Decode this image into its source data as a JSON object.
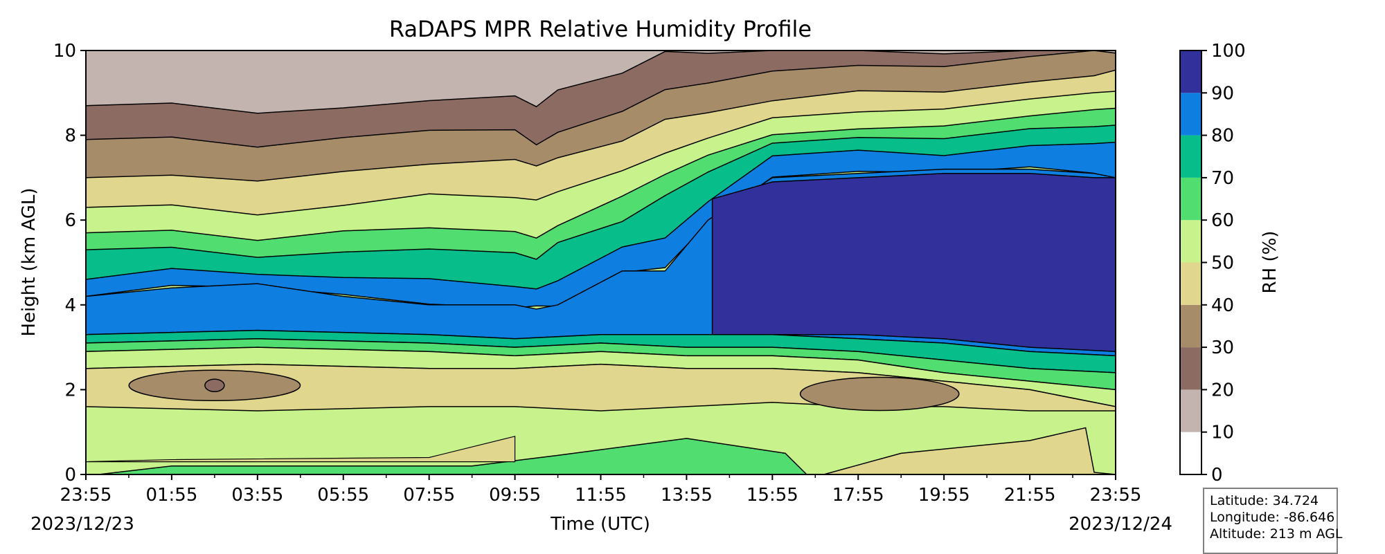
{
  "chart_data": {
    "type": "heatmap",
    "title": "RaDAPS MPR Relative Humidity Profile",
    "xlabel": "Time (UTC)",
    "ylabel": "Height (km AGL)",
    "x_tick_labels": [
      "23:55",
      "01:55",
      "03:55",
      "05:55",
      "07:55",
      "09:55",
      "11:55",
      "13:55",
      "15:55",
      "17:55",
      "19:55",
      "21:55",
      "23:55"
    ],
    "start_date": "2023/12/23",
    "end_date": "2023/12/24",
    "xlim": [
      0,
      24
    ],
    "ylim": [
      0,
      10
    ],
    "y_ticks": [
      0,
      2,
      4,
      6,
      8,
      10
    ],
    "colorbar": {
      "label": "RH (%)",
      "levels": [
        0,
        10,
        20,
        30,
        40,
        50,
        60,
        70,
        80,
        90,
        100
      ],
      "colors": [
        "#ffffff",
        "#c4b4b0",
        "#8c6b62",
        "#a68c68",
        "#e0d68e",
        "#c8f28c",
        "#52dd70",
        "#07be8a",
        "#0e7fe1",
        "#32319b"
      ]
    },
    "grid": false,
    "contour_fields": [
      {
        "name": "rh",
        "x_hours": [
          0,
          2,
          4,
          6,
          8,
          10,
          10.5,
          11,
          12.5,
          13.5,
          14.5,
          16,
          18,
          20,
          22,
          23.5,
          24
        ],
        "note_threshold_heights_km": {
          "10": [
            0,
            0,
            0,
            0,
            0,
            0,
            0,
            0,
            0,
            0,
            0,
            0,
            0,
            0,
            0,
            0,
            0
          ],
          "20": [
            8.7,
            8.7,
            8.6,
            8.6,
            8.8,
            9.0,
            8.6,
            9.1,
            9.5,
            9.9,
            10,
            10,
            10,
            10,
            10,
            10,
            10
          ],
          "30": [
            7.9,
            7.9,
            7.8,
            7.9,
            8.1,
            8.2,
            7.7,
            8.1,
            8.6,
            9.0,
            9.3,
            9.5,
            9.6,
            9.7,
            9.8,
            10,
            10
          ],
          "40": [
            7.0,
            7.0,
            7.0,
            7.1,
            7.3,
            7.5,
            7.2,
            7.5,
            7.9,
            8.3,
            8.6,
            8.8,
            9.0,
            9.1,
            9.2,
            9.4,
            9.6
          ],
          "50": [
            6.3,
            6.3,
            6.2,
            6.3,
            6.6,
            6.6,
            6.4,
            6.7,
            7.2,
            7.5,
            8.0,
            8.4,
            8.5,
            8.7,
            8.8,
            9.0,
            9.1
          ],
          "60": [
            5.7,
            5.7,
            5.6,
            5.7,
            5.8,
            5.8,
            5.5,
            5.9,
            6.6,
            7.0,
            7.6,
            8.0,
            8.1,
            8.3,
            8.4,
            8.6,
            8.7
          ],
          "70": [
            5.3,
            5.3,
            5.2,
            5.2,
            5.3,
            5.3,
            5.0,
            5.5,
            6.0,
            6.5,
            7.2,
            7.8,
            7.9,
            8.0,
            8.1,
            8.2,
            8.3
          ],
          "80": [
            4.6,
            4.8,
            4.8,
            4.6,
            4.6,
            4.5,
            4.3,
            4.6,
            5.4,
            5.5,
            6.5,
            7.5,
            7.6,
            7.6,
            7.7,
            7.8,
            7.9
          ],
          "90": [
            4.2,
            4.4,
            4.5,
            4.2,
            4.0,
            4.0,
            3.9,
            4.0,
            4.8,
            4.8,
            6.0,
            7.0,
            7.1,
            7.2,
            7.2,
            7.1,
            7.0
          ]
        }
      }
    ]
  },
  "info_box": {
    "latitude": "Latitude: 34.724",
    "longitude": "Longitude: -86.646",
    "altitude": "Altitude: 213 m AGL"
  }
}
